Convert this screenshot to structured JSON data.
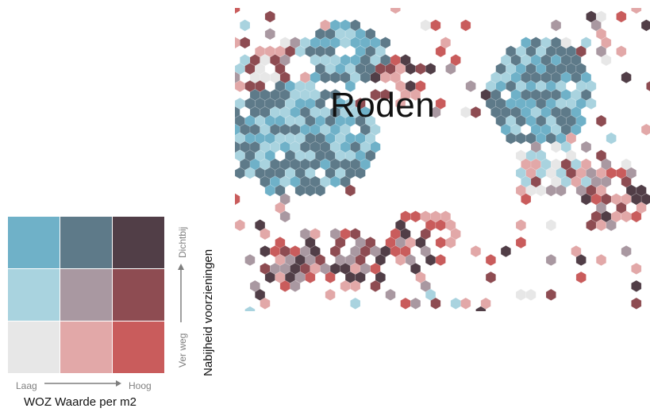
{
  "map": {
    "place_label": "Roden"
  },
  "legend": {
    "x_title": "WOZ Waarde per m2",
    "x_low": "Laag",
    "x_high": "Hoog",
    "y_title": "Nabijheid voorzieningen",
    "y_low": "Ver weg",
    "y_high": "Dichtbij",
    "colors": [
      [
        "#6fb1c8",
        "#5e7a89",
        "#513e47"
      ],
      [
        "#a9d3df",
        "#a998a1",
        "#8e4c52"
      ],
      [
        "#e7e7e7",
        "#e2a8a8",
        "#c95c5c"
      ]
    ]
  }
}
